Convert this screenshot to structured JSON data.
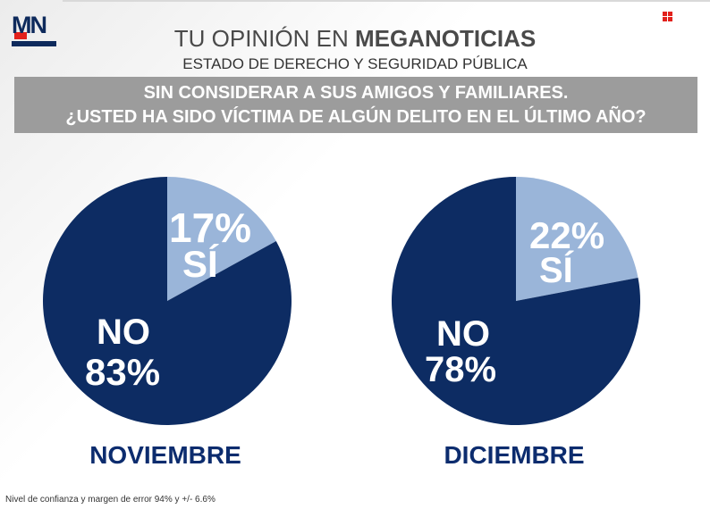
{
  "logo": {
    "text": "MN"
  },
  "header": {
    "title_light": "TU OPINIÓN EN",
    "title_bold": "MEGANOTICIAS",
    "subtitle": "ESTADO DE DERECHO Y SEGURIDAD PÚBLICA"
  },
  "question": {
    "line1": "SIN CONSIDERAR A SUS AMIGOS Y FAMILIARES.",
    "line2": "¿USTED HA SIDO VÍCTIMA DE ALGÚN DELITO EN EL ÚLTIMO AÑO?"
  },
  "footnote": "Nivel de confianza y margen de error 94% y +/- 6.6%",
  "colors": {
    "yes": "#9ab5d9",
    "no": "#0d2c63",
    "month": "#0c2c6e"
  },
  "chart_data": [
    {
      "type": "pie",
      "title": "NOVIEMBRE",
      "categories": [
        "SÍ",
        "NO"
      ],
      "values": [
        17,
        83
      ],
      "labels": {
        "yes_pct": "17%",
        "yes": "SÍ",
        "no": "NO",
        "no_pct": "83%"
      }
    },
    {
      "type": "pie",
      "title": "DICIEMBRE",
      "categories": [
        "SÍ",
        "NO"
      ],
      "values": [
        22,
        78
      ],
      "labels": {
        "yes_pct": "22%",
        "yes": "SÍ",
        "no": "NO",
        "no_pct": "78%"
      }
    }
  ]
}
